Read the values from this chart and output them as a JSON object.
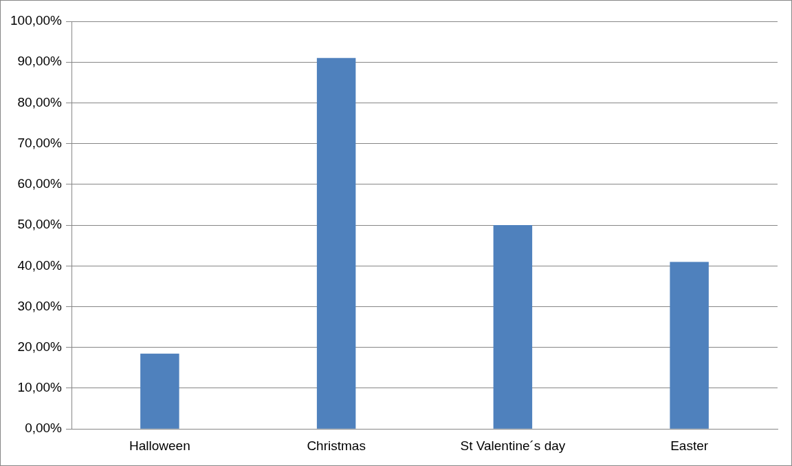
{
  "chart_data": {
    "type": "bar",
    "categories": [
      "Halloween",
      "Christmas",
      "St Valentine´s day",
      "Easter"
    ],
    "values": [
      18.5,
      91,
      50,
      41
    ],
    "color": "#4f81bd",
    "ylim": [
      0,
      100
    ],
    "yticks": [
      {
        "value": 0,
        "label": "0,00%"
      },
      {
        "value": 10,
        "label": "10,00%"
      },
      {
        "value": 20,
        "label": "20,00%"
      },
      {
        "value": 30,
        "label": "30,00%"
      },
      {
        "value": 40,
        "label": "40,00%"
      },
      {
        "value": 50,
        "label": "50,00%"
      },
      {
        "value": 60,
        "label": "60,00%"
      },
      {
        "value": 70,
        "label": "70,00%"
      },
      {
        "value": 80,
        "label": "80,00%"
      },
      {
        "value": 90,
        "label": "90,00%"
      },
      {
        "value": 100,
        "label": "100,00%"
      }
    ],
    "grid": "y"
  }
}
